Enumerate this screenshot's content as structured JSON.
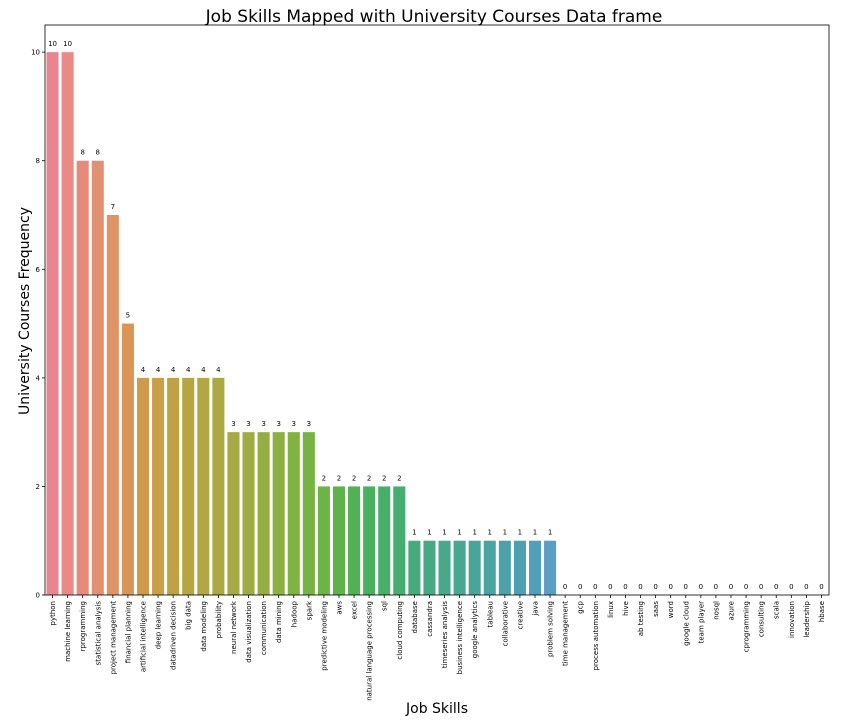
{
  "chart_data": {
    "type": "bar",
    "title": "Job Skills Mapped with University Courses Data frame",
    "xlabel": "Job Skills",
    "ylabel": "University Courses Frequency",
    "ylim": [
      0,
      10.5
    ],
    "yticks": [
      0,
      2,
      4,
      6,
      8,
      10
    ],
    "grid": false,
    "legend": "none",
    "categories": [
      "python",
      "machine learning",
      "rprogramming",
      "statistical analysis",
      "project management",
      "financial planning",
      "artificial intelligence",
      "deep learning",
      "datadriven decision",
      "big data",
      "data modeling",
      "probability",
      "neural network",
      "data visualization",
      "communication",
      "data mining",
      "hadoop",
      "spark",
      "predictive modeling",
      "aws",
      "excel",
      "natural language processing",
      "sql",
      "cloud computing",
      "database",
      "cassandra",
      "timeseries analysis",
      "business intelligence",
      "google analytics",
      "tableau",
      "collaborative",
      "creative",
      "java",
      "problem solving",
      "time management",
      "gcp",
      "process automation",
      "linux",
      "hive",
      "ab testing",
      "saas",
      "word",
      "google cloud",
      "team player",
      "nosql",
      "azure",
      "cprogramming",
      "consulting",
      "scala",
      "innovation",
      "leadership",
      "hbase"
    ],
    "values": [
      10,
      10,
      8,
      8,
      7,
      5,
      4,
      4,
      4,
      4,
      4,
      4,
      3,
      3,
      3,
      3,
      3,
      3,
      2,
      2,
      2,
      2,
      2,
      2,
      1,
      1,
      1,
      1,
      1,
      1,
      1,
      1,
      1,
      1,
      0,
      0,
      0,
      0,
      0,
      0,
      0,
      0,
      0,
      0,
      0,
      0,
      0,
      0,
      0,
      0,
      0,
      0
    ],
    "colors": [
      "#e8868f",
      "#e88a85",
      "#e68b7b",
      "#e29072",
      "#df9466",
      "#d99656",
      "#cf9a4b",
      "#c7a047",
      "#bfa244",
      "#b7a542",
      "#b1a744",
      "#aaa944",
      "#a4aa44",
      "#9dad44",
      "#94ae43",
      "#8cb042",
      "#82b241",
      "#77b343",
      "#6cb445",
      "#5db24c",
      "#52b155",
      "#48b05f",
      "#47af69",
      "#45ad72",
      "#46aa7a",
      "#47a983",
      "#47a88a",
      "#48a691",
      "#49a598",
      "#4aa4a0",
      "#4ba2a8",
      "#4da0b0",
      "#529fb9",
      "#5a9ec3",
      "#5c9bcd",
      "#6796d6",
      "#7890de",
      "#8d8be4",
      "#9f84e8",
      "#ae7eeb",
      "#bd76ea",
      "#c970e6",
      "#d46ce0",
      "#dc6ad7",
      "#e16bcc",
      "#e56dc1",
      "#e871b6",
      "#ea75aa",
      "#eb7aa1",
      "#eb7e98",
      "#ea8292",
      "#e8868c"
    ]
  }
}
